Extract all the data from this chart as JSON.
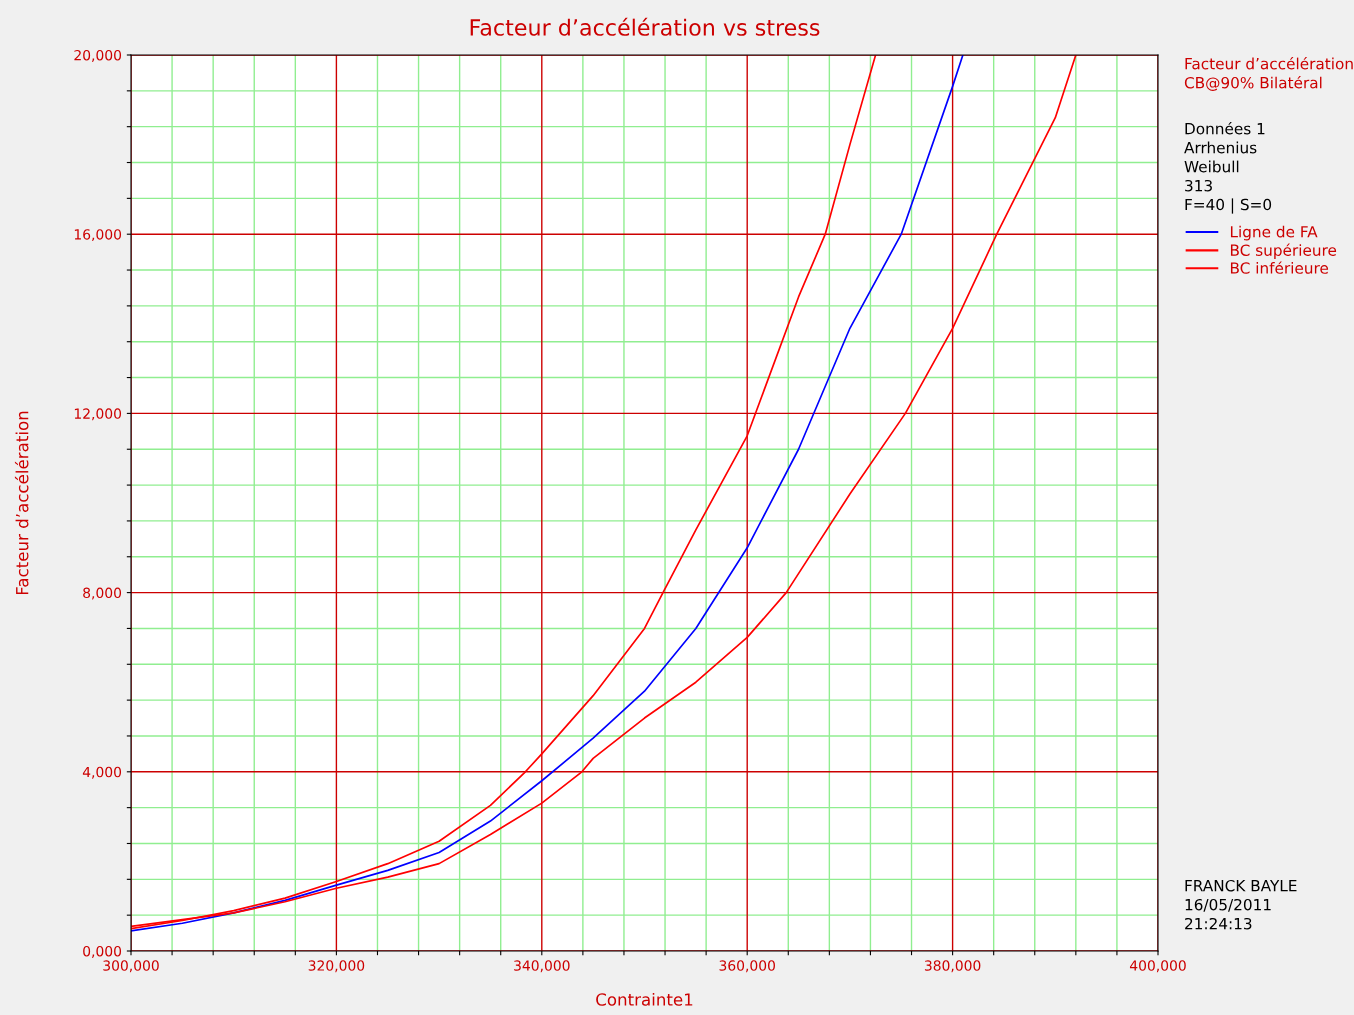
{
  "chart_data": {
    "type": "line",
    "title": "Facteur d’accélération vs stress",
    "xlabel": "Contrainte1",
    "ylabel": "Facteur d’accélération",
    "xlim": [
      300000,
      400000
    ],
    "ylim": [
      0,
      20000
    ],
    "xticks": [
      {
        "value": 300000,
        "label": "300,000"
      },
      {
        "value": 304000,
        "label": null
      },
      {
        "value": 308000,
        "label": null
      },
      {
        "value": 312000,
        "label": null
      },
      {
        "value": 316000,
        "label": null
      },
      {
        "value": 320000,
        "label": "320,000"
      },
      {
        "value": 324000,
        "label": null
      },
      {
        "value": 328000,
        "label": null
      },
      {
        "value": 332000,
        "label": null
      },
      {
        "value": 336000,
        "label": null
      },
      {
        "value": 340000,
        "label": "340,000"
      },
      {
        "value": 344000,
        "label": null
      },
      {
        "value": 348000,
        "label": null
      },
      {
        "value": 352000,
        "label": null
      },
      {
        "value": 356000,
        "label": null
      },
      {
        "value": 360000,
        "label": "360,000"
      },
      {
        "value": 364000,
        "label": null
      },
      {
        "value": 368000,
        "label": null
      },
      {
        "value": 372000,
        "label": null
      },
      {
        "value": 376000,
        "label": null
      },
      {
        "value": 380000,
        "label": "380,000"
      },
      {
        "value": 384000,
        "label": null
      },
      {
        "value": 388000,
        "label": null
      },
      {
        "value": 392000,
        "label": null
      },
      {
        "value": 396000,
        "label": null
      },
      {
        "value": 400000,
        "label": "400,000"
      }
    ],
    "yticks": [
      {
        "value": 0,
        "label": "0,000"
      },
      {
        "value": 800,
        "label": null
      },
      {
        "value": 1600,
        "label": null
      },
      {
        "value": 2400,
        "label": null
      },
      {
        "value": 3200,
        "label": null
      },
      {
        "value": 4000,
        "label": "4,000"
      },
      {
        "value": 4800,
        "label": null
      },
      {
        "value": 5600,
        "label": null
      },
      {
        "value": 6400,
        "label": null
      },
      {
        "value": 7200,
        "label": null
      },
      {
        "value": 8000,
        "label": "8,000"
      },
      {
        "value": 8800,
        "label": null
      },
      {
        "value": 9600,
        "label": null
      },
      {
        "value": 10400,
        "label": null
      },
      {
        "value": 11200,
        "label": null
      },
      {
        "value": 12000,
        "label": "12,000"
      },
      {
        "value": 12800,
        "label": null
      },
      {
        "value": 13600,
        "label": null
      },
      {
        "value": 14400,
        "label": null
      },
      {
        "value": 15200,
        "label": null
      },
      {
        "value": 16000,
        "label": "16,000"
      },
      {
        "value": 16800,
        "label": null
      },
      {
        "value": 17600,
        "label": null
      },
      {
        "value": 18400,
        "label": null
      },
      {
        "value": 19200,
        "label": null
      },
      {
        "value": 20000,
        "label": "20,000"
      }
    ],
    "grid": true,
    "legend": "right",
    "marker": "none",
    "line_style": "solid",
    "annotations": [
      "Facteur d’accélération",
      "CB@90% Bilatéral",
      "Données 1",
      "Arrhenius",
      "Weibull",
      "313",
      "F=40 | S=0",
      "FRANCK BAYLE",
      "16/05/2011",
      "21:24:13"
    ],
    "series": [
      {
        "name": "Ligne de FA",
        "color": "#0000ff",
        "x": [
          300000,
          305000,
          310000,
          315000,
          320000,
          325000,
          330000,
          335000,
          340000,
          345000,
          350000,
          355000,
          360000,
          365000,
          370000,
          375000,
          380000,
          381000
        ],
        "values": [
          450,
          620,
          850,
          1130,
          1470,
          1800,
          2200,
          2900,
          3800,
          4750,
          5800,
          7200,
          9000,
          11200,
          13900,
          16000,
          19300,
          20000
        ]
      },
      {
        "name": "BC supérieure",
        "color": "#ff0000",
        "x": [
          300000,
          305000,
          310000,
          315000,
          320000,
          325000,
          330000,
          335000,
          338400,
          340000,
          345000,
          350000,
          351800,
          355000,
          360000,
          365000,
          367600,
          370000,
          372500
        ],
        "values": [
          500,
          680,
          900,
          1180,
          1550,
          1950,
          2450,
          3250,
          4000,
          4400,
          5700,
          7200,
          8000,
          9400,
          11500,
          14600,
          16000,
          18000,
          20000
        ]
      },
      {
        "name": "BC inférieure",
        "color": "#ff0000",
        "x": [
          300000,
          305000,
          310000,
          315000,
          320000,
          325000,
          330000,
          335000,
          340000,
          343900,
          345000,
          350000,
          355000,
          360000,
          363800,
          370000,
          375400,
          380000,
          384300,
          390000,
          392000
        ],
        "values": [
          550,
          700,
          850,
          1100,
          1400,
          1650,
          1950,
          2600,
          3300,
          4000,
          4300,
          5200,
          6000,
          7000,
          8000,
          10200,
          12000,
          13900,
          16000,
          18600,
          20000
        ]
      }
    ]
  }
}
